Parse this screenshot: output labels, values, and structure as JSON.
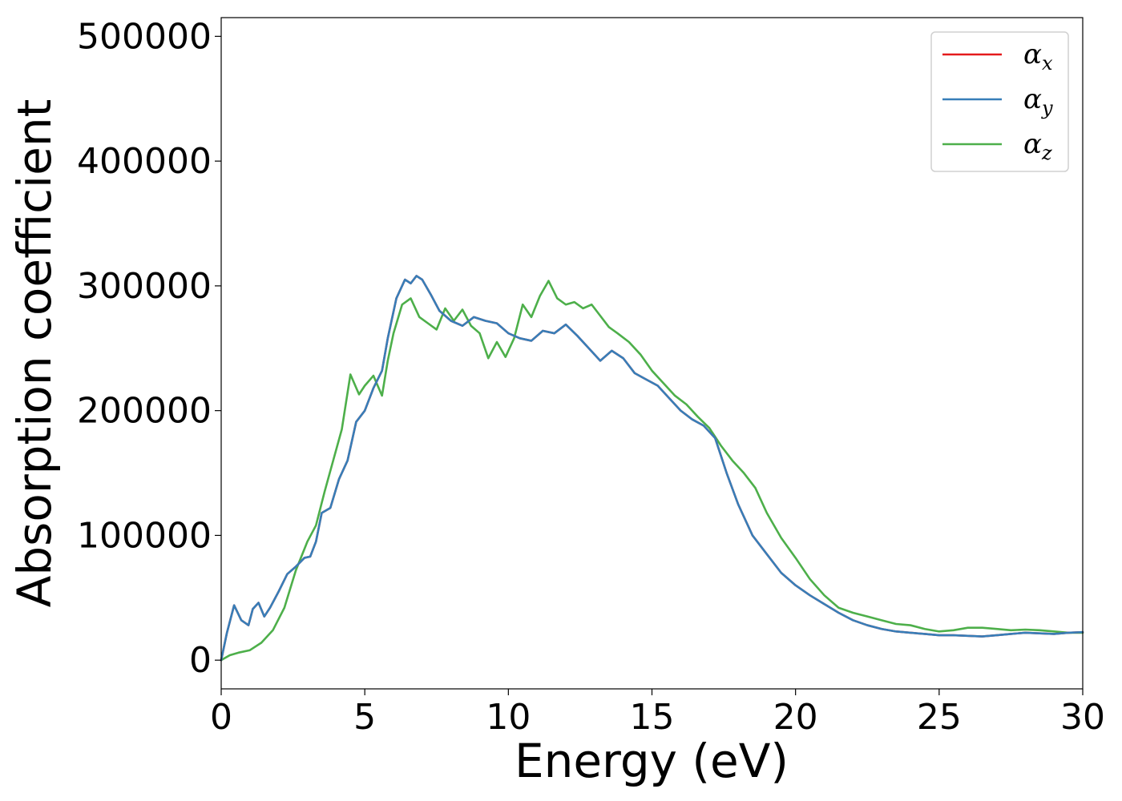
{
  "chart_data": {
    "type": "line",
    "xlabel": "Energy (eV)",
    "ylabel": "Absorption coefficient",
    "xlim": [
      0,
      30
    ],
    "ylim": [
      -23000,
      515000
    ],
    "xticks": [
      0,
      5,
      10,
      15,
      20,
      25,
      30
    ],
    "xtick_labels": [
      "0",
      "5",
      "10",
      "15",
      "20",
      "25",
      "30"
    ],
    "yticks": [
      0,
      100000,
      200000,
      300000,
      400000,
      500000
    ],
    "ytick_labels": [
      "0",
      "100000",
      "200000",
      "300000",
      "400000",
      "500000"
    ],
    "grid": false,
    "legend_position": "top-right",
    "series": [
      {
        "name": "α",
        "subscript": "x",
        "color": "#e41a1c",
        "x": [
          0,
          0.2,
          0.45,
          0.7,
          0.95,
          1.1,
          1.3,
          1.5,
          1.7,
          2.0,
          2.3,
          2.6,
          2.9,
          3.1,
          3.3,
          3.5,
          3.8,
          4.1,
          4.4,
          4.7,
          5.0,
          5.3,
          5.6,
          5.8,
          6.1,
          6.4,
          6.6,
          6.8,
          7.0,
          7.3,
          7.6,
          8.0,
          8.4,
          8.8,
          9.2,
          9.6,
          10.0,
          10.4,
          10.8,
          11.2,
          11.6,
          12.0,
          12.4,
          12.8,
          13.2,
          13.6,
          14.0,
          14.4,
          14.8,
          15.2,
          15.6,
          16.0,
          16.4,
          16.8,
          17.2,
          17.6,
          18.0,
          18.5,
          19.0,
          19.5,
          20.0,
          20.5,
          21.0,
          21.5,
          22.0,
          22.5,
          23.0,
          23.5,
          24.0,
          24.5,
          25.0,
          25.5,
          26.0,
          26.5,
          27.0,
          27.5,
          28.0,
          28.5,
          29.0,
          29.5,
          30.0
        ],
        "y": [
          0,
          22000,
          44000,
          32000,
          28000,
          41000,
          46000,
          35000,
          42000,
          55000,
          69000,
          75000,
          82000,
          83000,
          95000,
          118000,
          122000,
          145000,
          160000,
          191000,
          200000,
          218000,
          232000,
          258000,
          290000,
          305000,
          302000,
          308000,
          305000,
          293000,
          280000,
          272000,
          268000,
          275000,
          272000,
          270000,
          262000,
          258000,
          256000,
          264000,
          262000,
          269000,
          260000,
          250000,
          240000,
          248000,
          242000,
          230000,
          225000,
          220000,
          210000,
          200000,
          193000,
          188000,
          178000,
          150000,
          125000,
          100000,
          85000,
          70000,
          60000,
          52000,
          45000,
          38000,
          32000,
          28000,
          25000,
          23000,
          22000,
          21000,
          20000,
          20000,
          19500,
          19000,
          20000,
          21000,
          22000,
          21500,
          21000,
          22000,
          22500
        ]
      },
      {
        "name": "α",
        "subscript": "y",
        "color": "#377eb8",
        "x": [
          0,
          0.2,
          0.45,
          0.7,
          0.95,
          1.1,
          1.3,
          1.5,
          1.7,
          2.0,
          2.3,
          2.6,
          2.9,
          3.1,
          3.3,
          3.5,
          3.8,
          4.1,
          4.4,
          4.7,
          5.0,
          5.3,
          5.6,
          5.8,
          6.1,
          6.4,
          6.6,
          6.8,
          7.0,
          7.3,
          7.6,
          8.0,
          8.4,
          8.8,
          9.2,
          9.6,
          10.0,
          10.4,
          10.8,
          11.2,
          11.6,
          12.0,
          12.4,
          12.8,
          13.2,
          13.6,
          14.0,
          14.4,
          14.8,
          15.2,
          15.6,
          16.0,
          16.4,
          16.8,
          17.2,
          17.6,
          18.0,
          18.5,
          19.0,
          19.5,
          20.0,
          20.5,
          21.0,
          21.5,
          22.0,
          22.5,
          23.0,
          23.5,
          24.0,
          24.5,
          25.0,
          25.5,
          26.0,
          26.5,
          27.0,
          27.5,
          28.0,
          28.5,
          29.0,
          29.5,
          30.0
        ],
        "y": [
          0,
          22000,
          44000,
          32000,
          28000,
          41000,
          46000,
          35000,
          42000,
          55000,
          69000,
          75000,
          82000,
          83000,
          95000,
          118000,
          122000,
          145000,
          160000,
          191000,
          200000,
          218000,
          232000,
          258000,
          290000,
          305000,
          302000,
          308000,
          305000,
          293000,
          280000,
          272000,
          268000,
          275000,
          272000,
          270000,
          262000,
          258000,
          256000,
          264000,
          262000,
          269000,
          260000,
          250000,
          240000,
          248000,
          242000,
          230000,
          225000,
          220000,
          210000,
          200000,
          193000,
          188000,
          178000,
          150000,
          125000,
          100000,
          85000,
          70000,
          60000,
          52000,
          45000,
          38000,
          32000,
          28000,
          25000,
          23000,
          22000,
          21000,
          20000,
          20000,
          19500,
          19000,
          20000,
          21000,
          22000,
          21500,
          21000,
          22000,
          22500
        ]
      },
      {
        "name": "α",
        "subscript": "z",
        "color": "#4daf4a",
        "x": [
          0,
          0.3,
          0.6,
          1.0,
          1.4,
          1.8,
          2.2,
          2.6,
          3.0,
          3.3,
          3.6,
          3.9,
          4.2,
          4.5,
          4.8,
          5.0,
          5.3,
          5.6,
          5.8,
          6.0,
          6.3,
          6.6,
          6.9,
          7.2,
          7.5,
          7.8,
          8.1,
          8.4,
          8.7,
          9.0,
          9.3,
          9.6,
          9.9,
          10.2,
          10.5,
          10.8,
          11.1,
          11.4,
          11.7,
          12.0,
          12.3,
          12.6,
          12.9,
          13.2,
          13.5,
          13.8,
          14.2,
          14.6,
          15.0,
          15.4,
          15.8,
          16.2,
          16.6,
          17.0,
          17.4,
          17.8,
          18.2,
          18.6,
          19.0,
          19.5,
          20.0,
          20.5,
          21.0,
          21.5,
          22.0,
          22.5,
          23.0,
          23.5,
          24.0,
          24.5,
          25.0,
          25.5,
          26.0,
          26.5,
          27.0,
          27.5,
          28.0,
          28.5,
          29.0,
          29.5,
          30.0
        ],
        "y": [
          0,
          4000,
          6000,
          8000,
          14000,
          24000,
          42000,
          72000,
          95000,
          108000,
          135000,
          160000,
          185000,
          229000,
          213000,
          220000,
          228000,
          212000,
          240000,
          262000,
          285000,
          290000,
          275000,
          270000,
          265000,
          282000,
          272000,
          281000,
          268000,
          262000,
          242000,
          255000,
          243000,
          258000,
          285000,
          275000,
          292000,
          304000,
          290000,
          285000,
          287000,
          282000,
          285000,
          276000,
          267000,
          262000,
          255000,
          245000,
          232000,
          222000,
          212000,
          205000,
          195000,
          186000,
          172000,
          160000,
          150000,
          138000,
          118000,
          98000,
          82000,
          65000,
          52000,
          42000,
          38000,
          35000,
          32000,
          29000,
          28000,
          25000,
          23000,
          24000,
          26000,
          26000,
          25000,
          24000,
          24500,
          24000,
          23000,
          22000,
          22000
        ]
      }
    ]
  }
}
